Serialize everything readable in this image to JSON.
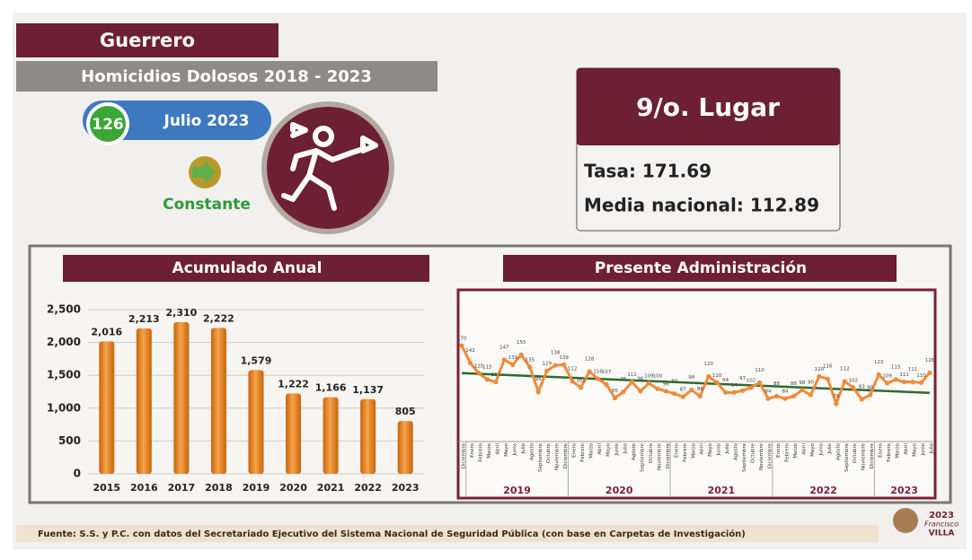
{
  "header": {
    "state": "Guerrero",
    "subtitle": "Homicidios Dolosos 2018 - 2023",
    "badge": "126",
    "period": "Julio 2023",
    "trend": "Constante"
  },
  "ranking": {
    "place": "9/o. Lugar",
    "rate": "Tasa: 171.69",
    "national": "Media nacional: 112.89"
  },
  "footer": "Fuente: S.S. y P.C. con datos del Secretariado Ejecutivo del Sistema Nacional de Seguridad Pública (con base en Carpetas de Investigación)",
  "logo": {
    "year": "2023",
    "name": "Francisco",
    "surname": "VILLA"
  },
  "chart_data": [
    {
      "type": "bar",
      "title": "Acumulado Anual",
      "color": "#ef8a23",
      "categories": [
        "2015",
        "2016",
        "2017",
        "2018",
        "2019",
        "2020",
        "2021",
        "2022",
        "2023"
      ],
      "values": [
        2016,
        2213,
        2310,
        2222,
        1579,
        1222,
        1166,
        1137,
        805
      ],
      "value_labels": [
        "2,016",
        "2,213",
        "2,310",
        "2,222",
        "1,579",
        "1,222",
        "1,166",
        "1,137",
        "805"
      ],
      "ylim": [
        0,
        2500
      ],
      "yticks": [
        0,
        500,
        {
          "value": 1000,
          "label": "1,000"
        },
        {
          "value": 1500,
          "label": "1,500"
        },
        {
          "value": 2000,
          "label": "2,000"
        },
        {
          "value": 2500,
          "label": "2,500"
        }
      ],
      "grid": true
    },
    {
      "type": "line",
      "title": "Presente Administración",
      "color": "#ef8a3a",
      "trend_color": "#2e6b2a",
      "categories": [
        "Diciembre",
        "Enero",
        "Febrero",
        "Marzo",
        "Abril",
        "Mayo",
        "Junio",
        "Julio",
        "Agosto",
        "Septiembre",
        "Octubre",
        "Noviembre",
        "Diciembre",
        "Enero",
        "Febrero",
        "Marzo",
        "Abril",
        "Mayo",
        "Junio",
        "Julio",
        "Agosto",
        "Septiembre",
        "Octubre",
        "Noviembre",
        "Diciembre",
        "Enero",
        "Febrero",
        "Marzo",
        "Abril",
        "Mayo",
        "Junio",
        "Julio",
        "Agosto",
        "Septiembre",
        "Octubre",
        "Noviembre",
        "Diciembre",
        "Enero",
        "Febrero",
        "Marzo",
        "Abril",
        "Mayo",
        "Junio",
        "Julio",
        "Agosto",
        "Septiembre",
        "Octubre",
        "Noviembre",
        "Diciembre",
        "Enero",
        "Febrero",
        "Marzo",
        "Abril",
        "Mayo",
        "Junio",
        "Julio"
      ],
      "values": [
        170,
        142,
        125,
        115,
        111,
        147,
        139,
        155,
        135,
        95,
        129,
        138,
        139,
        112,
        102,
        128,
        116,
        107,
        85,
        95,
        111,
        96,
        109,
        100,
        96,
        92,
        87,
        98,
        88,
        120,
        110,
        94,
        94,
        97,
        102,
        110,
        84,
        88,
        84,
        88,
        98,
        90,
        120,
        116,
        76,
        112,
        102,
        83,
        90,
        123,
        109,
        115,
        111,
        111,
        110,
        126
      ],
      "years": [
        "2019",
        "2020",
        "2021",
        "2022",
        "2023"
      ],
      "ylim": [
        0,
        250
      ]
    }
  ]
}
